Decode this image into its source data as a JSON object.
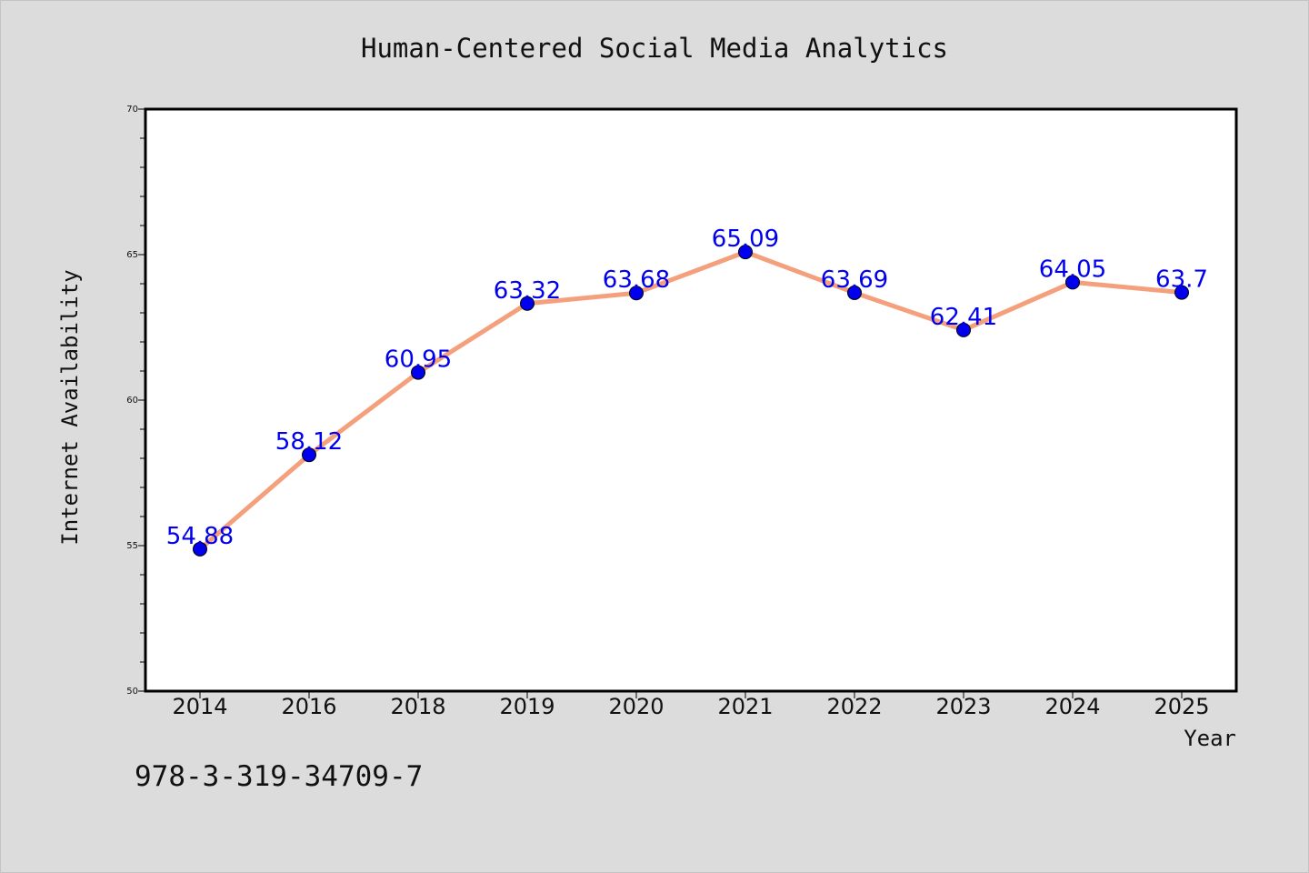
{
  "chart_data": {
    "type": "line",
    "title": "Human-Centered Social Media Analytics",
    "xlabel": "Year",
    "ylabel": "Internet Availability",
    "categories": [
      "2014",
      "2016",
      "2018",
      "2019",
      "2020",
      "2021",
      "2022",
      "2023",
      "2024",
      "2025"
    ],
    "series": [
      {
        "values": [
          54.88,
          58.12,
          60.95,
          63.32,
          63.68,
          65.09,
          63.69,
          62.41,
          64.05,
          63.7
        ],
        "data_labels": [
          "54.88",
          "58.12",
          "60.95",
          "63.32",
          "63.68",
          "65.09",
          "63.69",
          "62.41",
          "64.05",
          "63.7"
        ]
      }
    ],
    "ylim": [
      50,
      70
    ],
    "yticks": [
      "50",
      "55",
      "60",
      "65",
      "70"
    ],
    "grid": false,
    "legend": "none",
    "colors": {
      "line": "#f4a07c",
      "marker": "#0000ee",
      "data_label": "#0000ee",
      "plot_background": "#ffffff",
      "figure_background": "#dcdcdc"
    }
  },
  "footer": {
    "isbn": "978-3-319-34709-7"
  }
}
